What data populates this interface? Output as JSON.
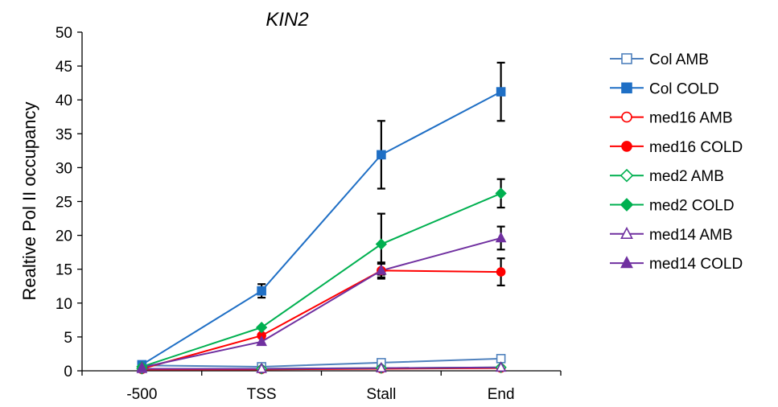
{
  "chart_data": {
    "type": "line",
    "title": "KIN2",
    "xlabel": "",
    "ylabel": "Realtive Pol II occupancy",
    "categories": [
      "-500",
      "TSS",
      "Stall",
      "End"
    ],
    "ylim": [
      0,
      50
    ],
    "yticks": [
      0,
      5,
      10,
      15,
      20,
      25,
      30,
      35,
      40,
      45,
      50
    ],
    "grid": false,
    "legend_position": "right",
    "series": [
      {
        "name": "Col AMB",
        "values": [
          0.8,
          0.6,
          1.2,
          1.8
        ],
        "color": "#4F81BD",
        "marker": "square",
        "filled": false
      },
      {
        "name": "Col COLD",
        "values": [
          0.9,
          11.8,
          31.9,
          41.2
        ],
        "errors": [
          null,
          1.0,
          5.0,
          4.3
        ],
        "color": "#1F6FC5",
        "marker": "square",
        "filled": true
      },
      {
        "name": "med16 AMB",
        "values": [
          0.2,
          0.2,
          0.3,
          0.4
        ],
        "color": "#FF0000",
        "marker": "circle",
        "filled": false
      },
      {
        "name": "med16 COLD",
        "values": [
          0.3,
          5.2,
          14.8,
          14.6
        ],
        "errors": [
          null,
          null,
          1.0,
          2.0
        ],
        "color": "#FF0000",
        "marker": "circle",
        "filled": true
      },
      {
        "name": "med2 AMB",
        "values": [
          0.3,
          0.3,
          0.4,
          0.5
        ],
        "color": "#00B050",
        "marker": "diamond",
        "filled": false
      },
      {
        "name": "med2 COLD",
        "values": [
          0.6,
          6.4,
          18.7,
          26.2
        ],
        "errors": [
          null,
          null,
          4.5,
          2.1
        ],
        "color": "#00B050",
        "marker": "diamond",
        "filled": true
      },
      {
        "name": "med14 AMB",
        "values": [
          0.3,
          0.3,
          0.4,
          0.5
        ],
        "color": "#7030A0",
        "marker": "triangle",
        "filled": false
      },
      {
        "name": "med14 COLD",
        "values": [
          0.5,
          4.3,
          14.8,
          19.6
        ],
        "errors": [
          null,
          null,
          1.2,
          1.7
        ],
        "color": "#7030A0",
        "marker": "triangle",
        "filled": true
      }
    ]
  }
}
